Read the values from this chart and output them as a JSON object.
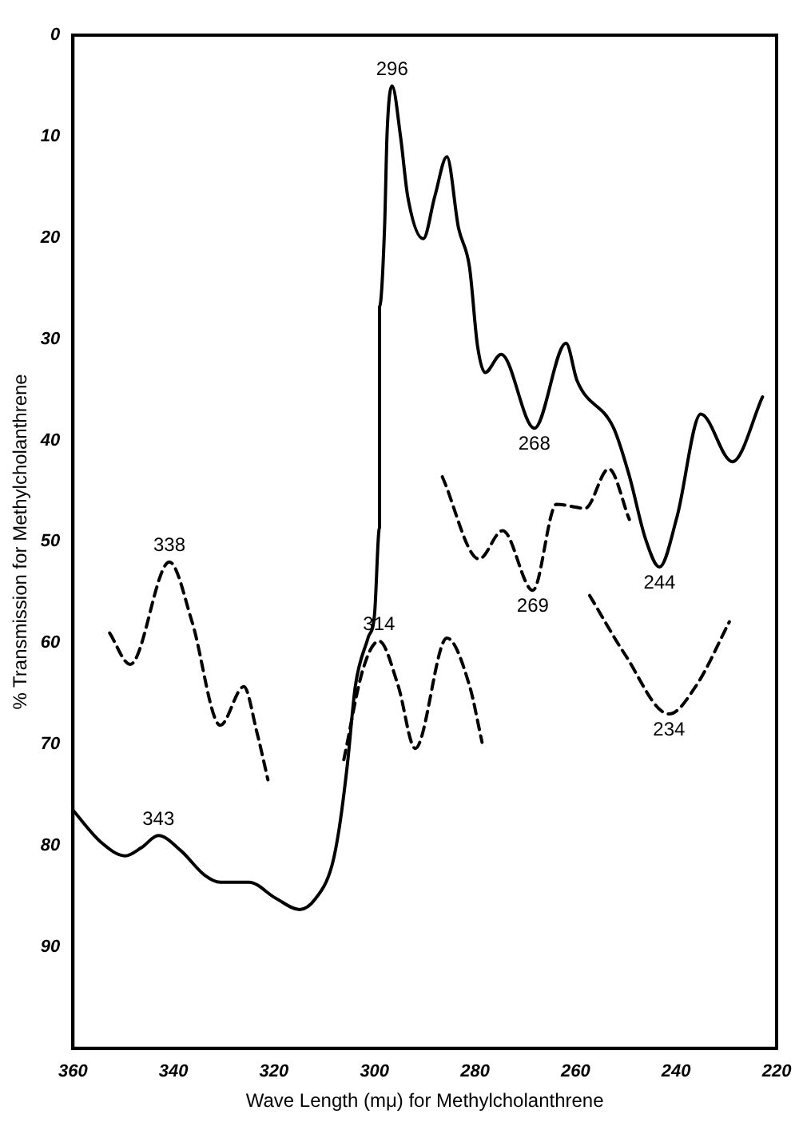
{
  "chart_data": {
    "type": "line",
    "xlabel": "Wave Length (mμ) for Methylcholanthrene",
    "ylabel": "% Transmission for Methylcholanthrene",
    "xlim": [
      360,
      220
    ],
    "xticks": [
      360,
      340,
      320,
      300,
      280,
      260,
      240,
      220
    ],
    "ylim": [
      100,
      0
    ],
    "yticks": [
      0,
      10,
      20,
      30,
      40,
      50,
      60,
      70,
      80,
      90
    ],
    "series": [
      {
        "color": "#000000",
        "line_style": "solid",
        "x": [
          360,
          354.3,
          349.6,
          346.4,
          343,
          338.5,
          333.8,
          330.7,
          325,
          319.6,
          314.9,
          311.7,
          308.5,
          307,
          305.4,
          303.8,
          301.3,
          300,
          299,
          299,
          298,
          297.5,
          296.5,
          294.8,
          293.4,
          290.3,
          288,
          285.6,
          283.3,
          281.1,
          279.5,
          278,
          274.8,
          268.2,
          261.9,
          259.7,
          252.4,
          249.3,
          246.1,
          243.3,
          239.8,
          235.1,
          228.8,
          222.8
        ],
        "values": [
          76.5,
          79.7,
          81,
          80.2,
          79,
          80.5,
          82.9,
          83.6,
          83.6,
          85.2,
          86.3,
          85.2,
          82,
          78.2,
          72,
          64.2,
          59.5,
          57.2,
          48.6,
          26.8,
          19,
          9.7,
          5,
          10.1,
          15.9,
          20.1,
          15.9,
          12,
          19,
          22.9,
          30.7,
          33.3,
          31.5,
          38.8,
          30.4,
          34.1,
          38.8,
          43.5,
          49.7,
          52.5,
          47.5,
          37.4,
          42.1,
          35.7
        ]
      },
      {
        "color": "#000000",
        "line_style": "dashed",
        "x": [
          352.7,
          348.6,
          340.8,
          336.3,
          330.7,
          326,
          323.4,
          321.2
        ],
        "values": [
          59,
          62.1,
          52,
          57.9,
          68.1,
          64.3,
          68.8,
          73.5
        ]
      },
      {
        "color": "#000000",
        "line_style": "dashed",
        "x": [
          306.1,
          302.3,
          299.1,
          295.3,
          291.9,
          285.6,
          281.1,
          278.6
        ],
        "values": [
          71.5,
          62.6,
          59.8,
          64.2,
          70.4,
          59.5,
          64.2,
          69.8
        ]
      },
      {
        "color": "#000000",
        "line_style": "dashed",
        "x": [
          286.5,
          279.2,
          274.5,
          268.5,
          263.8,
          258.1,
          253.4,
          249.3
        ],
        "values": [
          43.6,
          51.7,
          48.9,
          54.8,
          46.3,
          46.7,
          42.8,
          47.8
        ]
      },
      {
        "color": "#000000",
        "line_style": "dashed",
        "x": [
          257.2,
          250.2,
          241.4,
          236,
          229.4
        ],
        "values": [
          55.3,
          61.1,
          67,
          64.2,
          57.9
        ]
      }
    ],
    "annotations": [
      {
        "text": "296",
        "x": 296.5,
        "y": 5
      },
      {
        "text": "268",
        "x": 268.2,
        "y": 38.8
      },
      {
        "text": "244",
        "x": 243.3,
        "y": 52.5
      },
      {
        "text": "269",
        "x": 268.5,
        "y": 54.8
      },
      {
        "text": "234",
        "x": 241.4,
        "y": 67
      },
      {
        "text": "343",
        "x": 343,
        "y": 79
      },
      {
        "text": "338",
        "x": 340.8,
        "y": 52
      },
      {
        "text": "314",
        "x": 299.1,
        "y": 59.8
      }
    ]
  }
}
